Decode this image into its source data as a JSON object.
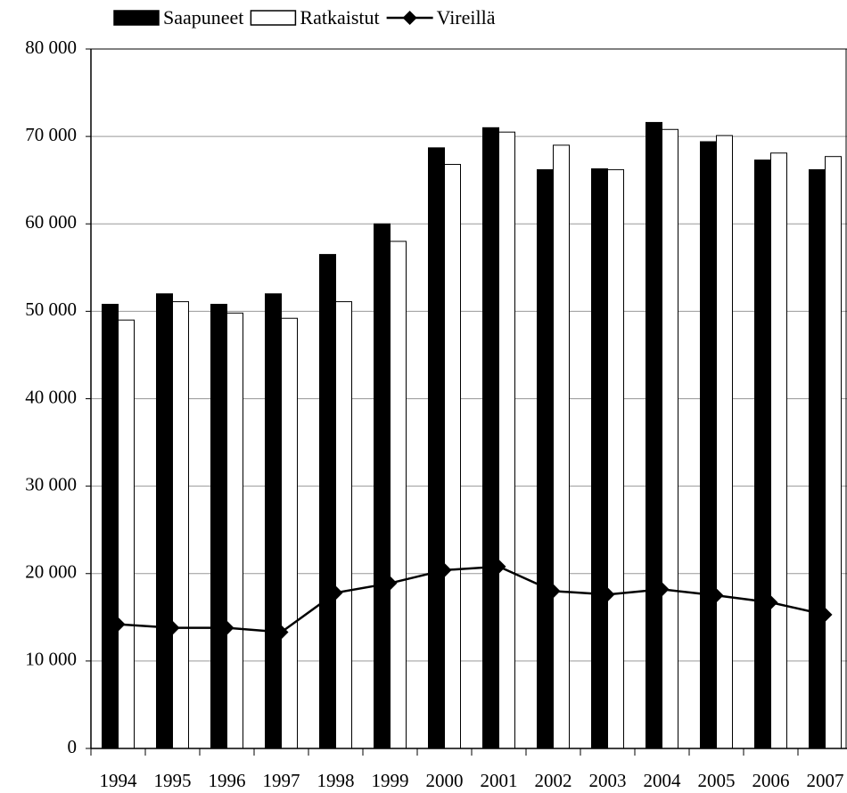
{
  "chart_data": {
    "type": "bar",
    "categories": [
      "1994",
      "1995",
      "1996",
      "1997",
      "1998",
      "1999",
      "2000",
      "2001",
      "2002",
      "2003",
      "2004",
      "2005",
      "2006",
      "2007"
    ],
    "series": [
      {
        "name": "Saapuneet",
        "color": "#000000",
        "values": [
          50800,
          52000,
          50800,
          52000,
          56500,
          60000,
          68700,
          71000,
          66200,
          66300,
          71600,
          69400,
          67300,
          66200
        ]
      },
      {
        "name": "Ratkaistut",
        "color": "#ffffff",
        "values": [
          49000,
          51100,
          49800,
          49200,
          51100,
          58000,
          66800,
          70500,
          69000,
          66200,
          70800,
          70100,
          68100,
          67700
        ]
      },
      {
        "name": "Vireillä",
        "type": "line",
        "color": "#000000",
        "values": [
          14200,
          13800,
          13800,
          13300,
          17800,
          18900,
          20400,
          20800,
          18000,
          17600,
          18200,
          17500,
          16700,
          15300
        ]
      }
    ],
    "ylim": [
      0,
      80000
    ],
    "yticks": [
      {
        "value": 0,
        "label": "0"
      },
      {
        "value": 10000,
        "label": "10 000"
      },
      {
        "value": 20000,
        "label": "20 000"
      },
      {
        "value": 30000,
        "label": "30 000"
      },
      {
        "value": 40000,
        "label": "40 000"
      },
      {
        "value": 50000,
        "label": "50 000"
      },
      {
        "value": 60000,
        "label": "60 000"
      },
      {
        "value": 70000,
        "label": "70 000"
      },
      {
        "value": 80000,
        "label": "80 000"
      }
    ],
    "grid": true,
    "legend": "top"
  }
}
